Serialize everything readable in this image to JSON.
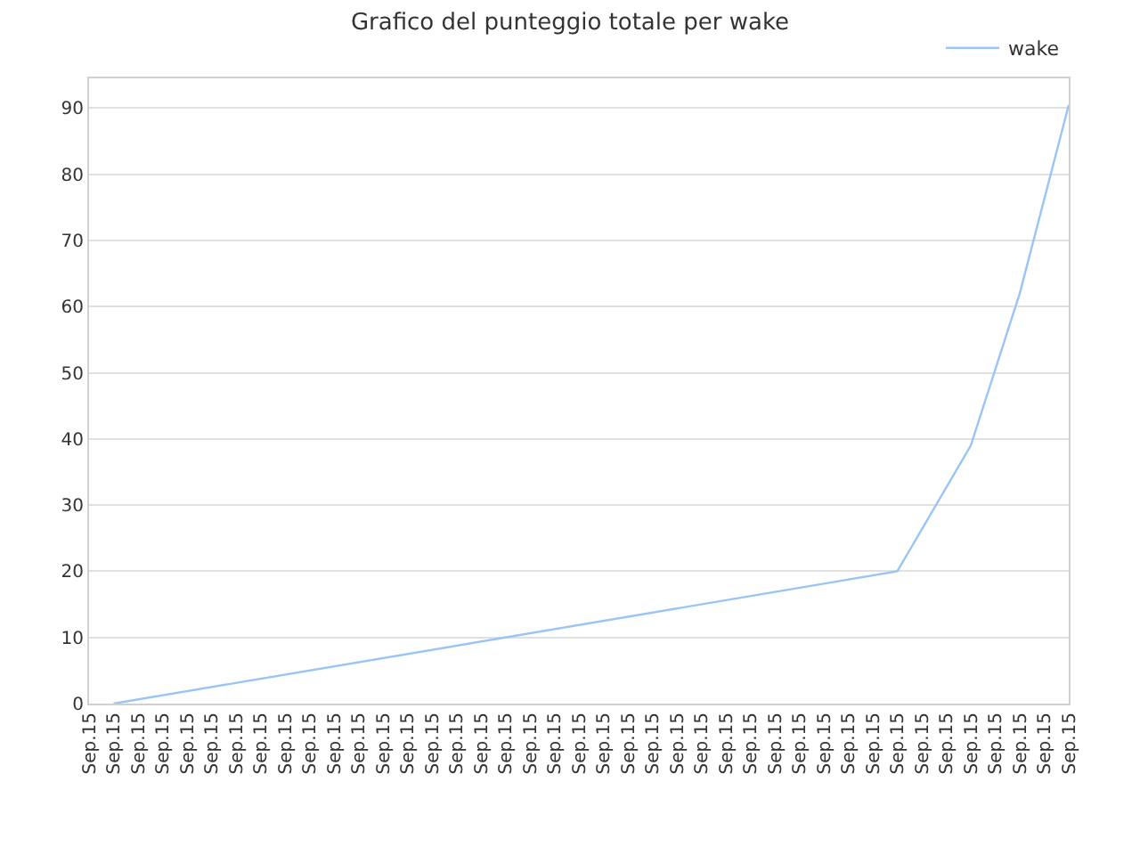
{
  "chart_data": {
    "type": "line",
    "title": "Grafico del punteggio totale per wake",
    "categories": [
      "Sep.15",
      "Sep.15",
      "Sep.15",
      "Sep.15",
      "Sep.15",
      "Sep.15",
      "Sep.15",
      "Sep.15",
      "Sep.15",
      "Sep.15",
      "Sep.15",
      "Sep.15",
      "Sep.15",
      "Sep.15",
      "Sep.15",
      "Sep.15",
      "Sep.15",
      "Sep.15",
      "Sep.15",
      "Sep.15",
      "Sep.15",
      "Sep.15",
      "Sep.15",
      "Sep.15",
      "Sep.15",
      "Sep.15",
      "Sep.15",
      "Sep.15",
      "Sep.15",
      "Sep.15",
      "Sep.15",
      "Sep.15",
      "Sep.15",
      "Sep.15",
      "Sep.15",
      "Sep.15",
      "Sep.15",
      "Sep.15",
      "Sep.15",
      "Sep.15",
      "Sep.15"
    ],
    "series": [
      {
        "name": "wake",
        "color": "#99c5f5",
        "values": [
          null,
          0,
          null,
          null,
          null,
          null,
          null,
          null,
          null,
          null,
          null,
          null,
          null,
          null,
          null,
          null,
          null,
          null,
          null,
          null,
          null,
          null,
          null,
          null,
          null,
          null,
          null,
          null,
          null,
          null,
          null,
          null,
          null,
          20,
          null,
          null,
          39,
          null,
          62,
          null,
          90.5
        ]
      }
    ],
    "ylim": [
      0,
      94.5
    ],
    "yticks": [
      0,
      10,
      20,
      30,
      40,
      50,
      60,
      70,
      80,
      90
    ],
    "grid": "y",
    "legend": "top right",
    "marker": "none",
    "line_style": "solid"
  }
}
